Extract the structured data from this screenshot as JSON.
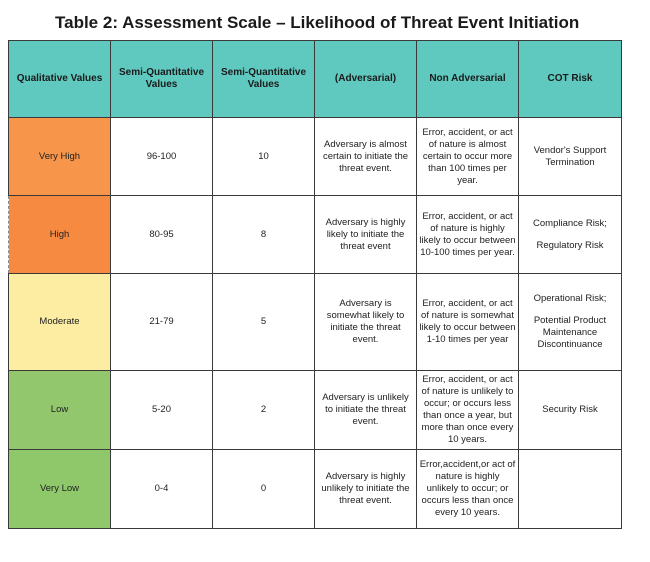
{
  "title": "Table 2: Assessment Scale – Likelihood of Threat Event Initiation",
  "headers": [
    "Qualitative Values",
    "Semi-Quantitative Values",
    "Semi-Quantitative Values",
    "(Adversarial)",
    "Non Adversarial",
    "COT Risk"
  ],
  "rows": [
    {
      "qual": "Very High",
      "range": "96-100",
      "score": "10",
      "adv": "Adversary is almost certain to initiate the threat event.",
      "nonadv": "Error, accident, or act of nature is almost certain to occur more than 100 times per year.",
      "cot": [
        "Vendor's Support Termination"
      ]
    },
    {
      "qual": "High",
      "range": "80-95",
      "score": "8",
      "adv": "Adversary is highly likely to initiate the threat event",
      "nonadv": "Error, accident, or act of nature is highly likely to occur between 10-100 times per year.",
      "cot": [
        "Compliance Risk;",
        "Regulatory Risk"
      ]
    },
    {
      "qual": "Moderate",
      "range": "21-79",
      "score": "5",
      "adv": "Adversary is somewhat likely to initiate the threat event.",
      "nonadv": "Error, accident, or act of nature is somewhat likely to occur between 1-10 times per year",
      "cot": [
        "Operational Risk;",
        "Potential Product Maintenance Discontinuance"
      ]
    },
    {
      "qual": "Low",
      "range": "5-20",
      "score": "2",
      "adv": "Adversary is unlikely to initiate the threat event.",
      "nonadv": "Error, accident, or act of nature is unlikely to occur; or occurs less than once a year, but more than once every 10 years.",
      "cot": [
        "Security Risk"
      ]
    },
    {
      "qual": "Very Low",
      "range": "0-4",
      "score": "0",
      "adv": "Adversary is highly unlikely to initiate the threat event.",
      "nonadv": "Error,accident,or act of nature is highly unlikely to occur; or occurs less than once every 10 years.",
      "cot": [
        ""
      ]
    }
  ]
}
